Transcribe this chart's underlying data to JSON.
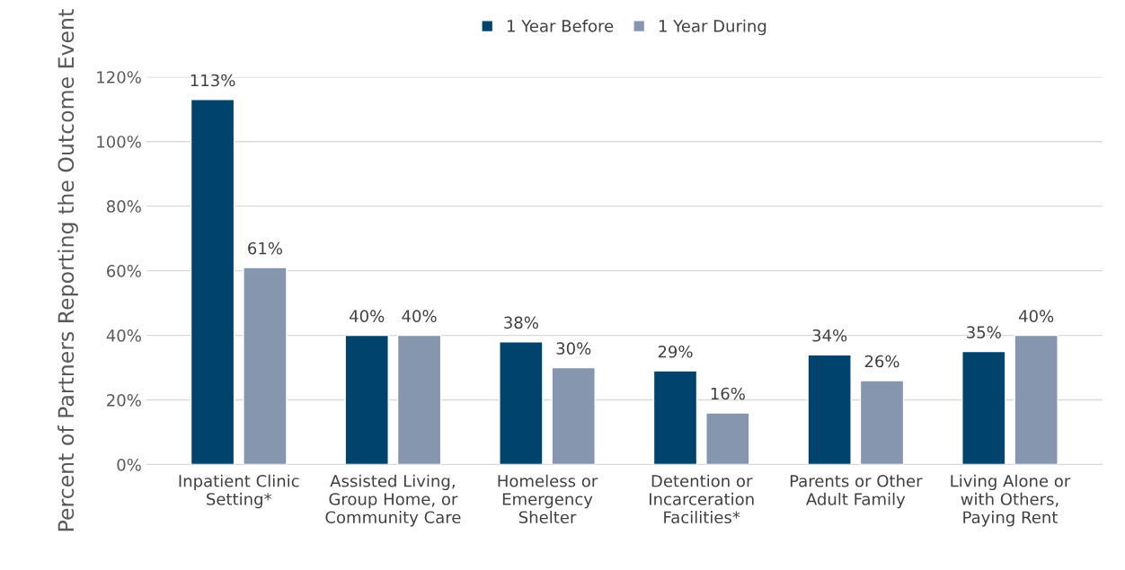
{
  "chart_data": {
    "type": "bar",
    "ylabel": "Percent of Partners Reporting the Outcome Event",
    "categories": [
      "Inpatient Clinic\nSetting*",
      "Assisted Living,\nGroup Home, or\nCommunity Care",
      "Homeless or\nEmergency\nShelter",
      "Detention or\nIncarceration\nFacilities*",
      "Parents or Other\nAdult Family",
      "Living Alone or\nwith Others,\nPaying Rent"
    ],
    "series": [
      {
        "name": "1 Year Before",
        "color": "#00446e",
        "values": [
          113,
          40,
          38,
          29,
          34,
          35
        ],
        "value_labels": [
          "113%",
          "40%",
          "38%",
          "29%",
          "34%",
          "35%"
        ]
      },
      {
        "name": "1 Year During",
        "color": "#8696ae",
        "values": [
          61,
          40,
          30,
          16,
          26,
          40
        ],
        "value_labels": [
          "61%",
          "40%",
          "30%",
          "16%",
          "26%",
          "40%"
        ]
      }
    ],
    "ylim": [
      0,
      120
    ],
    "yticks": [
      {
        "value": 0,
        "label": "0%"
      },
      {
        "value": 20,
        "label": "20%"
      },
      {
        "value": 40,
        "label": "40%"
      },
      {
        "value": 60,
        "label": "60%"
      },
      {
        "value": 80,
        "label": "80%"
      },
      {
        "value": 100,
        "label": "100%"
      },
      {
        "value": 120,
        "label": "120%"
      }
    ],
    "grid": "y",
    "legend": "top"
  }
}
